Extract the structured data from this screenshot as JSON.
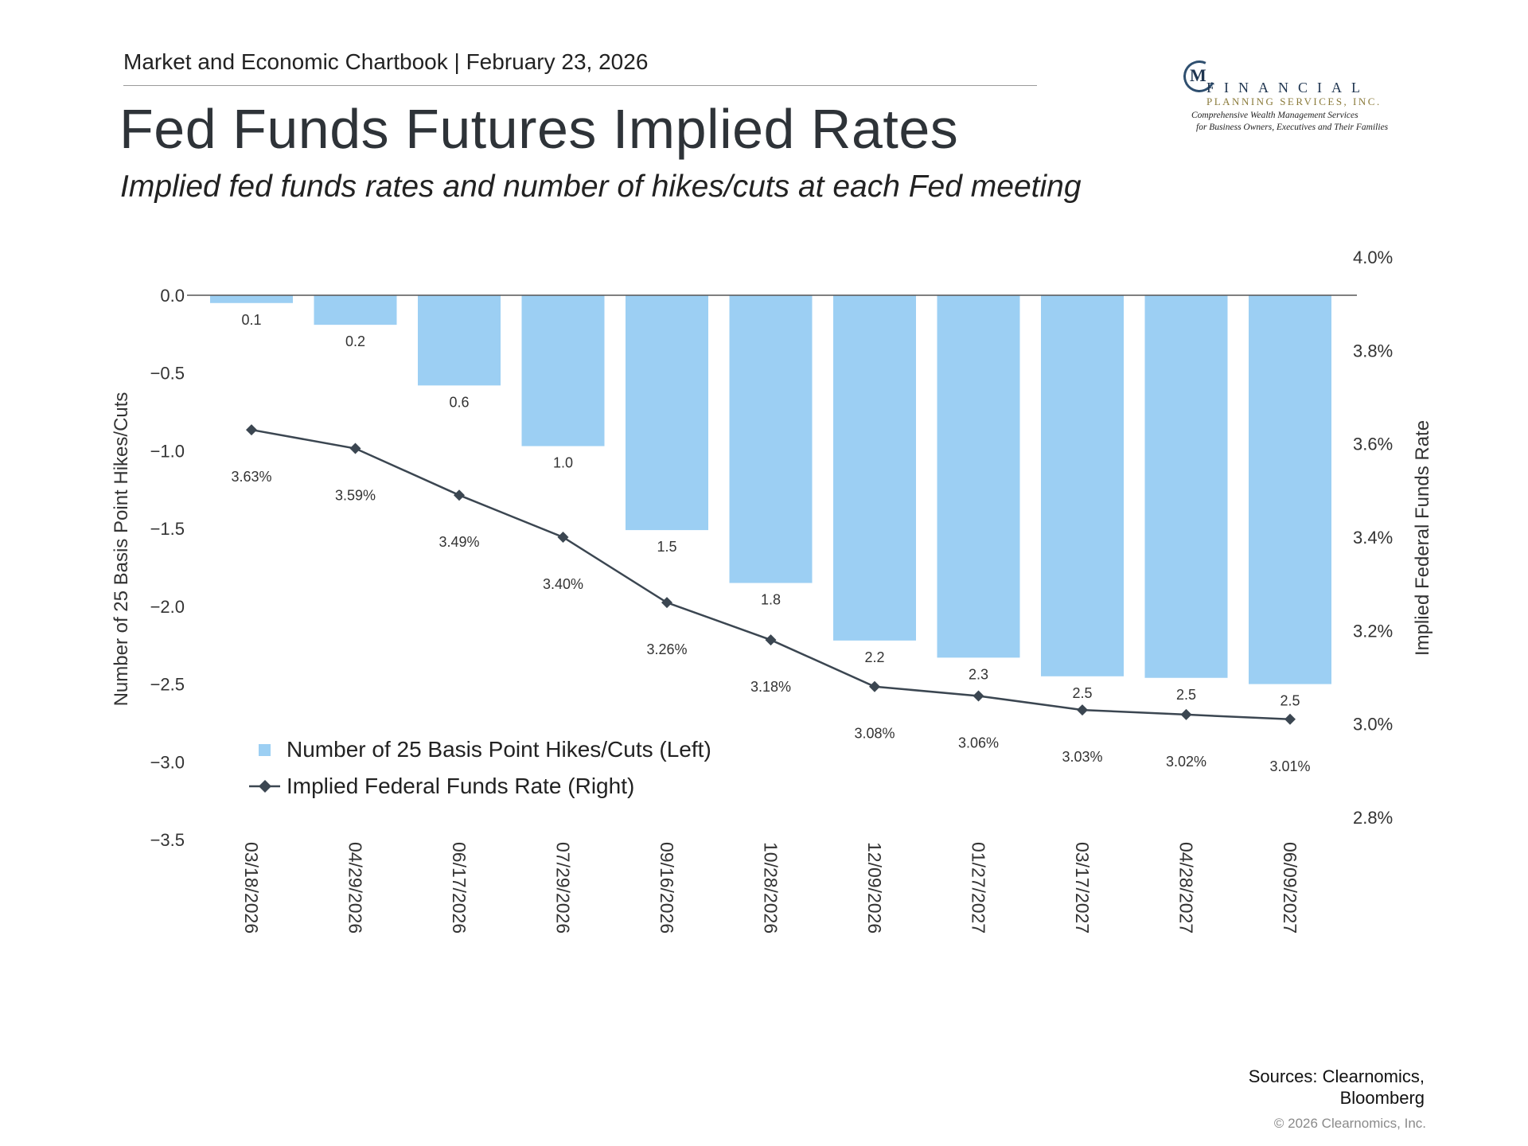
{
  "header": {
    "line": "Market and Economic Chartbook | February 23, 2026",
    "title": "Fed Funds Futures Implied Rates",
    "subtitle": "Implied fed funds rates and number of hikes/cuts at each Fed meeting"
  },
  "logo": {
    "mark": "M",
    "word": "FINANCIAL",
    "sub": "PLANNING SERVICES, INC.",
    "tagline_1": "Comprehensive Wealth Management Services",
    "tagline_2": "for Business Owners, Executives and Their Families"
  },
  "footer": {
    "sources_1": "Sources: Clearnomics,",
    "sources_2": "Bloomberg",
    "copyright": "© 2026 Clearnomics, Inc."
  },
  "chart_data": {
    "type": "bar",
    "categories": [
      "03/18/2026",
      "04/29/2026",
      "06/17/2026",
      "07/29/2026",
      "09/16/2026",
      "10/28/2026",
      "12/09/2026",
      "01/27/2027",
      "03/17/2027",
      "04/28/2027",
      "06/09/2027"
    ],
    "series": [
      {
        "name": "Number of 25 Basis Point Hikes/Cuts (Left)",
        "type": "bar",
        "axis": "left",
        "color": "#9ccff3",
        "values": [
          -0.05,
          -0.19,
          -0.58,
          -0.97,
          -1.51,
          -1.85,
          -2.22,
          -2.33,
          -2.45,
          -2.46,
          -2.5
        ],
        "labels": [
          "0.1",
          "0.2",
          "0.6",
          "1.0",
          "1.5",
          "1.8",
          "2.2",
          "2.3",
          "2.5",
          "2.5",
          "2.5"
        ]
      },
      {
        "name": "Implied Federal Funds Rate (Right)",
        "type": "line",
        "axis": "right",
        "color": "#3b4651",
        "marker": "diamond",
        "values": [
          3.63,
          3.59,
          3.49,
          3.4,
          3.26,
          3.18,
          3.08,
          3.06,
          3.03,
          3.02,
          3.01
        ],
        "labels": [
          "3.63%",
          "3.59%",
          "3.49%",
          "3.40%",
          "3.26%",
          "3.18%",
          "3.08%",
          "3.06%",
          "3.03%",
          "3.02%",
          "3.01%"
        ]
      }
    ],
    "ylabel": "Number of 25 Basis Point Hikes/Cuts",
    "ylabel_right": "Implied Federal Funds Rate",
    "ylim": [
      -3.5,
      0.0
    ],
    "ylim_right": [
      2.8,
      4.0
    ],
    "yticks": [
      "0.0",
      "−0.5",
      "−1.0",
      "−1.5",
      "−2.0",
      "−2.5",
      "−3.0",
      "−3.5"
    ],
    "yticks_right": [
      "4.0%",
      "3.8%",
      "3.6%",
      "3.4%",
      "3.2%",
      "3.0%",
      "2.8%"
    ],
    "grid": false,
    "legend_position": "bottom-left"
  }
}
